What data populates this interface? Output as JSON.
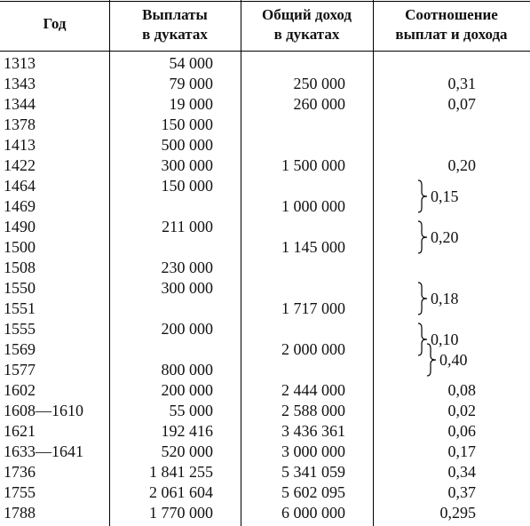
{
  "headers": {
    "year": "Год",
    "payments_line1": "Выплаты",
    "payments_line2": "в дукатах",
    "income_line1": "Общий доход",
    "income_line2": "в дукатах",
    "ratio_line1": "Соотношение",
    "ratio_line2": "выплат и дохода"
  },
  "rows": [
    {
      "year": "1313",
      "payments": "54 000",
      "income": "",
      "ratio": ""
    },
    {
      "year": "1343",
      "payments": "79 000",
      "income": "250 000",
      "ratio": "0,31"
    },
    {
      "year": "1344",
      "payments": "19 000",
      "income": "260 000",
      "ratio": "0,07"
    },
    {
      "year": "1378",
      "payments": "150 000",
      "income": "",
      "ratio": ""
    },
    {
      "year": "1413",
      "payments": "500 000",
      "income": "",
      "ratio": ""
    },
    {
      "year": "1422",
      "payments": "300 000",
      "income": "1 500 000",
      "ratio": "0,20"
    },
    {
      "year": "1464",
      "payments": "150 000",
      "income": "",
      "ratio": ""
    },
    {
      "year": "1469",
      "payments": "",
      "income": "1 000 000",
      "ratio": ""
    },
    {
      "year": "1490",
      "payments": "211 000",
      "income": "",
      "ratio": ""
    },
    {
      "year": "1500",
      "payments": "",
      "income": "1 145 000",
      "ratio": ""
    },
    {
      "year": "1508",
      "payments": "230 000",
      "income": "",
      "ratio": ""
    },
    {
      "year": "1550",
      "payments": "300 000",
      "income": "",
      "ratio": ""
    },
    {
      "year": "1551",
      "payments": "",
      "income": "1 717 000",
      "ratio": ""
    },
    {
      "year": "1555",
      "payments": "200 000",
      "income": "",
      "ratio": ""
    },
    {
      "year": "1569",
      "payments": "",
      "income": "2 000 000",
      "ratio": ""
    },
    {
      "year": "1577",
      "payments": "800 000",
      "income": "",
      "ratio": ""
    },
    {
      "year": "1602",
      "payments": "200 000",
      "income": "2 444 000",
      "ratio": "0,08"
    },
    {
      "year": "1608—1610",
      "payments": "55 000",
      "income": "2 588 000",
      "ratio": "0,02"
    },
    {
      "year": "1621",
      "payments": "192 416",
      "income": "3 436 361",
      "ratio": "0,06"
    },
    {
      "year": "1633—1641",
      "payments": "520 000",
      "income": "3 000 000",
      "ratio": "0,17"
    },
    {
      "year": "1736",
      "payments": "1 841 255",
      "income": "5 341 059",
      "ratio": "0,34"
    },
    {
      "year": "1755",
      "payments": "2 061 604",
      "income": "5 602 095",
      "ratio": "0,37"
    },
    {
      "year": "1788",
      "payments": "1 770 000",
      "income": "6 000 000",
      "ratio": "0,295"
    }
  ],
  "bracket_ratios": [
    {
      "from_row": 6,
      "to_row": 7,
      "value": "0,15"
    },
    {
      "from_row": 8,
      "to_row": 9,
      "value": "0,20"
    },
    {
      "from_row": 11,
      "to_row": 12,
      "value": "0,18"
    },
    {
      "from_row": 13,
      "to_row": 14,
      "value": "0,10"
    },
    {
      "from_row": 14,
      "to_row": 15,
      "value": "0,40"
    }
  ]
}
